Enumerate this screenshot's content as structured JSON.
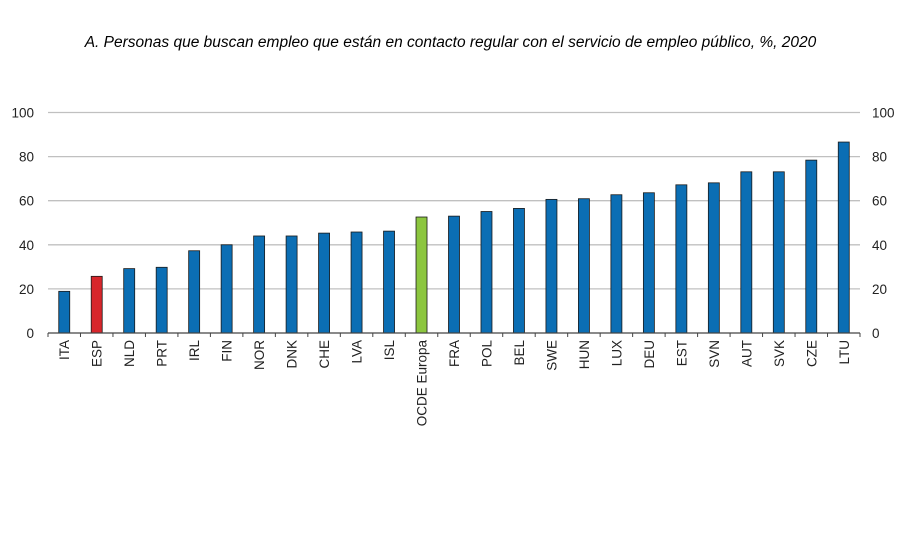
{
  "chart_data": {
    "type": "bar",
    "title": "A. Personas que buscan empleo que están en contacto regular con el servicio de empleo público, %, 2020",
    "xlabel": "",
    "ylabel": "",
    "ylim": [
      0,
      100
    ],
    "yticks": [
      "0",
      "20",
      "40",
      "60",
      "80",
      "100"
    ],
    "grid": true,
    "categories": [
      "ITA",
      "ESP",
      "NLD",
      "PRT",
      "IRL",
      "FIN",
      "NOR",
      "DNK",
      "CHE",
      "LVA",
      "ISL",
      "OCDE Europa",
      "FRA",
      "POL",
      "BEL",
      "SWE",
      "HUN",
      "LUX",
      "DEU",
      "EST",
      "SVN",
      "AUT",
      "SVK",
      "CZE",
      "LTU"
    ],
    "values": [
      18.9,
      25.7,
      29.2,
      29.8,
      37.3,
      40.0,
      44.0,
      44.0,
      45.3,
      45.8,
      46.2,
      52.6,
      53.0,
      55.1,
      56.5,
      60.6,
      60.9,
      62.7,
      63.6,
      67.2,
      68.1,
      73.1,
      73.1,
      78.4,
      86.6
    ],
    "highlight": {
      "ESP": "#d7262b",
      "OCDE Europa": "#8cc63f"
    },
    "colors": {
      "default": "#0b6eb4",
      "grid": "#c0c0c0",
      "axis": "#444444"
    }
  }
}
